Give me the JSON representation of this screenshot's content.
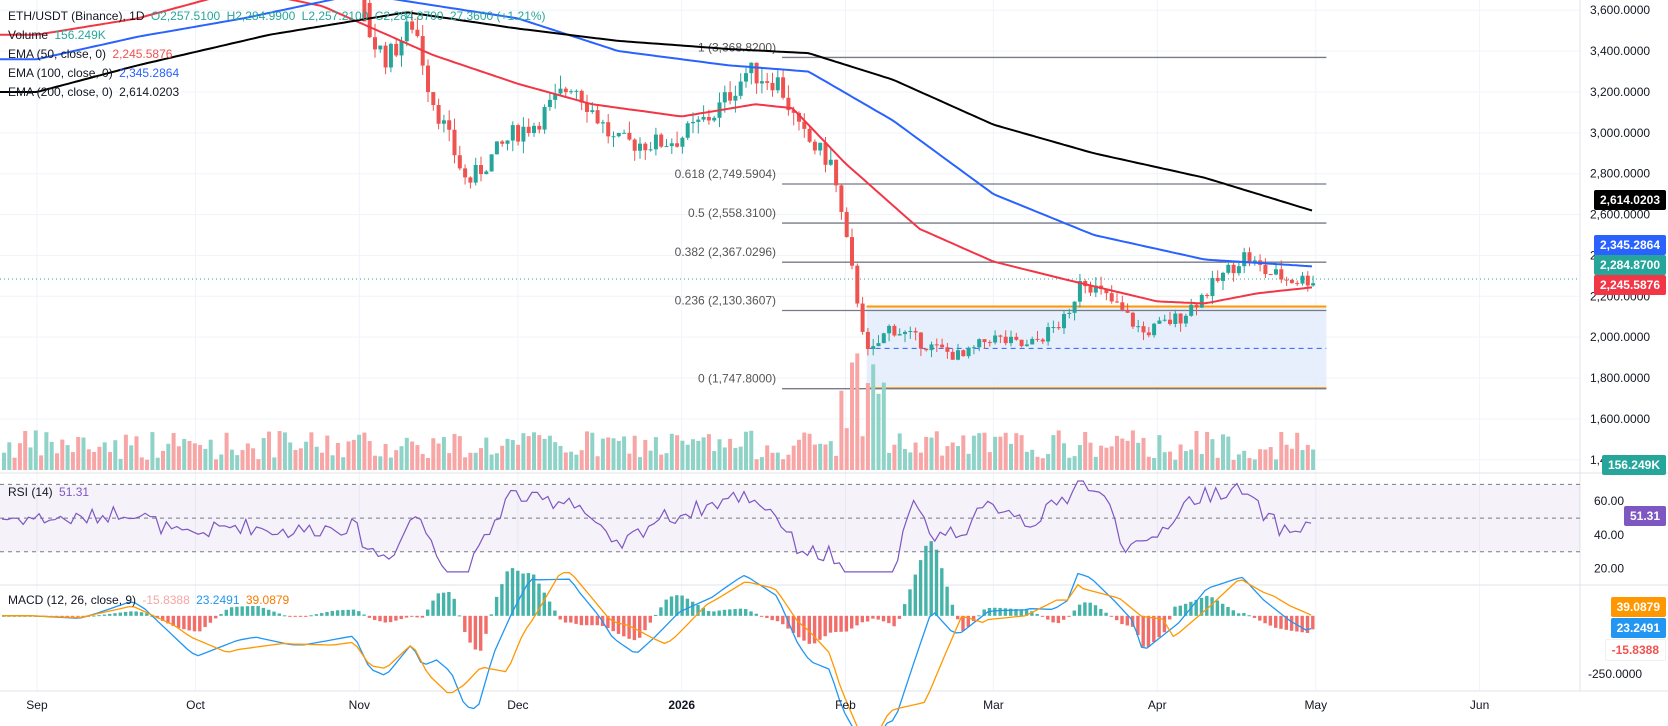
{
  "header": {
    "symbol": "ETH/USDT (Binance), 1D",
    "open": "O2,257.5100",
    "high": "H2,284.9900",
    "low": "L2,257.2100",
    "close": "C2,284.8700",
    "change": "27.3600 (+1.21%)"
  },
  "legends": {
    "volume": {
      "label": "Volume",
      "value": "156.249K"
    },
    "ema50": {
      "label": "EMA (50, close, 0)",
      "value": "2,245.5876"
    },
    "ema100": {
      "label": "EMA (100, close, 0)",
      "value": "2,345.2864"
    },
    "ema200": {
      "label": "EMA (200, close, 0)",
      "value": "2,614.0203"
    },
    "rsi": {
      "label": "RSI (14)",
      "value": "51.31"
    },
    "macd": {
      "label": "MACD (12, 26, close, 9)",
      "v1": "-15.8388",
      "v2": "23.2491",
      "v3": "39.0879"
    }
  },
  "price_tags": {
    "ema200": "2,614.0203",
    "ema100": "2,345.2864",
    "last": "2,284.8700",
    "ema50": "2,245.5876",
    "volume": "156.249K",
    "rsi": "51.31",
    "macd_signal": "39.0879",
    "macd_line": "23.2491",
    "macd_hist": "-15.8388"
  },
  "colors": {
    "up": "#26a69a",
    "down": "#ef5350",
    "ema50": "#f23645",
    "ema100": "#2962ff",
    "ema200": "#000000",
    "rsi": "#7e57c2",
    "macd": "#2196f3",
    "signal": "#ff9800",
    "fib": "#787b86",
    "box": "#ff9800"
  },
  "chart_data": {
    "type": "candlestick",
    "x_axis": {
      "type": "date",
      "tick_labels": [
        "Sep",
        "Oct",
        "Nov",
        "Dec",
        "2026",
        "Feb",
        "Mar",
        "Apr",
        "May",
        "Jun"
      ],
      "tick_dates": [
        "2025-09-01",
        "2025-10-01",
        "2025-11-01",
        "2025-12-01",
        "2026-01-01",
        "2026-02-01",
        "2026-03-01",
        "2026-04-01",
        "2026-05-01",
        "2026-06-01"
      ]
    },
    "price_axis": {
      "ylim": [
        1350,
        3650
      ],
      "ticks": [
        3600,
        3400,
        3200,
        3000,
        2800,
        2600,
        2400,
        2200,
        2000,
        1800,
        1600,
        1400
      ],
      "tick_labels": [
        "3,600.0000",
        "3,400.0000",
        "3,200.0000",
        "3,000.0000",
        "2,800.0000",
        "2,600.0000",
        "2,400.0000",
        "2,200.0000",
        "2,000.0000",
        "1,800.0000",
        "1,600.0000",
        "1,400.0000"
      ]
    },
    "fibonacci": [
      {
        "level": "1",
        "price": 3368.82,
        "label": "1 (3,368.8200)"
      },
      {
        "level": "0.618",
        "price": 2749.5904,
        "label": "0.618 (2,749.5904)"
      },
      {
        "level": "0.5",
        "price": 2558.31,
        "label": "0.5 (2,558.3100)"
      },
      {
        "level": "0.382",
        "price": 2367.0296,
        "label": "0.382 (2,367.0296)"
      },
      {
        "level": "0.236",
        "price": 2130.3607,
        "label": "0.236 (2,130.3607)"
      },
      {
        "level": "0",
        "price": 1747.8,
        "label": "0 (1,747.8000)"
      }
    ],
    "range_box": {
      "top": 2150,
      "bottom": 1750,
      "mid": 1945
    },
    "last_price": 2284.87,
    "ema_series": [
      {
        "name": "EMA 50",
        "points": [
          [
            "2025-09-01",
            3480
          ],
          [
            "2025-09-20",
            3560
          ],
          [
            "2025-10-10",
            3700
          ],
          [
            "2025-10-25",
            3620
          ],
          [
            "2025-11-15",
            3380
          ],
          [
            "2025-12-01",
            3240
          ],
          [
            "2025-12-15",
            3140
          ],
          [
            "2026-01-01",
            3080
          ],
          [
            "2026-01-15",
            3140
          ],
          [
            "2026-01-22",
            3120
          ],
          [
            "2026-02-01",
            2850
          ],
          [
            "2026-02-15",
            2530
          ],
          [
            "2026-03-01",
            2370
          ],
          [
            "2026-03-15",
            2280
          ],
          [
            "2026-04-01",
            2175
          ],
          [
            "2026-04-10",
            2165
          ],
          [
            "2026-04-20",
            2215
          ],
          [
            "2026-05-01",
            2245.59
          ]
        ]
      },
      {
        "name": "EMA 100",
        "points": [
          [
            "2025-09-01",
            3360
          ],
          [
            "2025-09-20",
            3470
          ],
          [
            "2025-10-10",
            3560
          ],
          [
            "2025-11-01",
            3680
          ],
          [
            "2025-12-01",
            3560
          ],
          [
            "2025-12-20",
            3400
          ],
          [
            "2026-01-10",
            3330
          ],
          [
            "2026-01-25",
            3300
          ],
          [
            "2026-02-10",
            3060
          ],
          [
            "2026-03-01",
            2700
          ],
          [
            "2026-03-20",
            2500
          ],
          [
            "2026-04-10",
            2380
          ],
          [
            "2026-05-01",
            2345.29
          ]
        ]
      },
      {
        "name": "EMA 200",
        "points": [
          [
            "2025-09-01",
            3200
          ],
          [
            "2025-09-20",
            3330
          ],
          [
            "2025-10-15",
            3480
          ],
          [
            "2025-11-10",
            3590
          ],
          [
            "2025-12-01",
            3510
          ],
          [
            "2025-12-20",
            3450
          ],
          [
            "2026-01-10",
            3410
          ],
          [
            "2026-01-25",
            3390
          ],
          [
            "2026-02-10",
            3260
          ],
          [
            "2026-03-01",
            3040
          ],
          [
            "2026-03-20",
            2900
          ],
          [
            "2026-04-10",
            2780
          ],
          [
            "2026-05-01",
            2614.02
          ]
        ]
      }
    ],
    "price_path": [
      [
        "2025-09-01",
        4400
      ],
      [
        "2025-09-10",
        4380
      ],
      [
        "2025-09-20",
        4500
      ],
      [
        "2025-10-01",
        4200
      ],
      [
        "2025-10-10",
        4100
      ],
      [
        "2025-10-20",
        3900
      ],
      [
        "2025-11-01",
        3750
      ],
      [
        "2025-11-04",
        3450
      ],
      [
        "2025-11-07",
        3360
      ],
      [
        "2025-11-12",
        3550
      ],
      [
        "2025-11-15",
        3200
      ],
      [
        "2025-11-22",
        2750
      ],
      [
        "2025-12-01",
        3000
      ],
      [
        "2025-12-05",
        3050
      ],
      [
        "2025-12-12",
        3250
      ],
      [
        "2025-12-20",
        2950
      ],
      [
        "2025-12-28",
        2950
      ],
      [
        "2026-01-01",
        2970
      ],
      [
        "2026-01-08",
        3100
      ],
      [
        "2026-01-14",
        3300
      ],
      [
        "2026-01-20",
        3250
      ],
      [
        "2026-01-24",
        3000
      ],
      [
        "2026-01-30",
        2850
      ],
      [
        "2026-02-03",
        2300
      ],
      [
        "2026-02-06",
        1900
      ],
      [
        "2026-02-10",
        2050
      ],
      [
        "2026-02-18",
        1950
      ],
      [
        "2026-02-24",
        1900
      ],
      [
        "2026-03-01",
        2000
      ],
      [
        "2026-03-08",
        1950
      ],
      [
        "2026-03-16",
        2100
      ],
      [
        "2026-03-18",
        2300
      ],
      [
        "2026-03-25",
        2150
      ],
      [
        "2026-03-30",
        2020
      ],
      [
        "2026-04-06",
        2100
      ],
      [
        "2026-04-12",
        2250
      ],
      [
        "2026-04-18",
        2400
      ],
      [
        "2026-04-22",
        2320
      ],
      [
        "2026-04-27",
        2280
      ],
      [
        "2026-05-01",
        2284.87
      ]
    ],
    "rsi": {
      "ylim": [
        12,
        75
      ],
      "ticks": [
        60,
        40,
        20
      ],
      "tick_labels": [
        "60.00",
        "40.00",
        "20.00"
      ],
      "bands": [
        70,
        50,
        30
      ],
      "last": 51.31
    },
    "macd": {
      "ylim": [
        -320,
        120
      ],
      "tick_labels": [
        "-250.0000"
      ],
      "last_macd": 23.2491,
      "last_signal": 39.0879,
      "last_hist": -15.8388
    }
  }
}
